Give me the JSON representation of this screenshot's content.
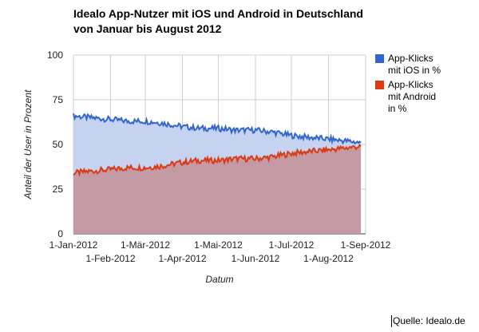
{
  "chart_data": {
    "type": "area",
    "title": [
      "Idealo App-Nutzer mit iOS und Android in Deutschland",
      "von Januar bis August 2012"
    ],
    "ylabel": "Anteil der User in Prozent",
    "xlabel": "Datum",
    "ylim": [
      0,
      100
    ],
    "yticks": [
      "0",
      "25",
      "50",
      "75",
      "100"
    ],
    "xticks_top": [
      {
        "label": "1-Jan-2012",
        "date": "2012-01-01"
      },
      {
        "label": "1-Mär-2012",
        "date": "2012-03-01"
      },
      {
        "label": "1-Mai-2012",
        "date": "2012-05-01"
      },
      {
        "label": "1-Jul-2012",
        "date": "2012-07-01"
      },
      {
        "label": "1-Sep-2012",
        "date": "2012-09-01"
      }
    ],
    "xticks_bottom": [
      {
        "label": "1-Feb-2012",
        "date": "2012-02-01"
      },
      {
        "label": "1-Apr-2012",
        "date": "2012-04-01"
      },
      {
        "label": "1-Jun-2012",
        "date": "2012-06-01"
      },
      {
        "label": "1-Aug-2012",
        "date": "2012-08-01"
      }
    ],
    "xlim": [
      "2012-01-01",
      "2012-09-01"
    ],
    "grid": true,
    "legend_position": "right",
    "series": [
      {
        "name": "App-Klicks mit iOS in %",
        "color": "#3366cc",
        "fill": "#c5d3f0",
        "points": [
          [
            "2012-01-01",
            66
          ],
          [
            "2012-01-15",
            65
          ],
          [
            "2012-02-01",
            64
          ],
          [
            "2012-02-15",
            63
          ],
          [
            "2012-03-01",
            63
          ],
          [
            "2012-03-15",
            62
          ],
          [
            "2012-04-01",
            60
          ],
          [
            "2012-04-15",
            59
          ],
          [
            "2012-05-01",
            59
          ],
          [
            "2012-05-15",
            58
          ],
          [
            "2012-06-01",
            58
          ],
          [
            "2012-06-15",
            57
          ],
          [
            "2012-07-01",
            55
          ],
          [
            "2012-07-15",
            54
          ],
          [
            "2012-08-01",
            53
          ],
          [
            "2012-08-15",
            52
          ],
          [
            "2012-08-28",
            51
          ]
        ]
      },
      {
        "name": "App-Klicks mit Android in %",
        "color": "#dc3912",
        "fill": "#c49aa5",
        "points": [
          [
            "2012-01-01",
            34
          ],
          [
            "2012-01-15",
            35
          ],
          [
            "2012-02-01",
            36
          ],
          [
            "2012-02-15",
            37
          ],
          [
            "2012-03-01",
            37
          ],
          [
            "2012-03-15",
            38
          ],
          [
            "2012-04-01",
            40
          ],
          [
            "2012-04-15",
            41
          ],
          [
            "2012-05-01",
            41
          ],
          [
            "2012-05-15",
            42
          ],
          [
            "2012-06-01",
            42
          ],
          [
            "2012-06-15",
            43
          ],
          [
            "2012-07-01",
            45
          ],
          [
            "2012-07-15",
            46
          ],
          [
            "2012-08-01",
            47
          ],
          [
            "2012-08-15",
            48
          ],
          [
            "2012-08-28",
            49
          ]
        ]
      }
    ]
  },
  "legend": [
    {
      "lines": [
        "App-Klicks",
        "mit iOS in %"
      ],
      "color": "#3366cc"
    },
    {
      "lines": [
        "App-Klicks",
        "mit Android",
        "in %"
      ],
      "color": "#dc3912"
    }
  ],
  "source": "Quelle: Idealo.de"
}
